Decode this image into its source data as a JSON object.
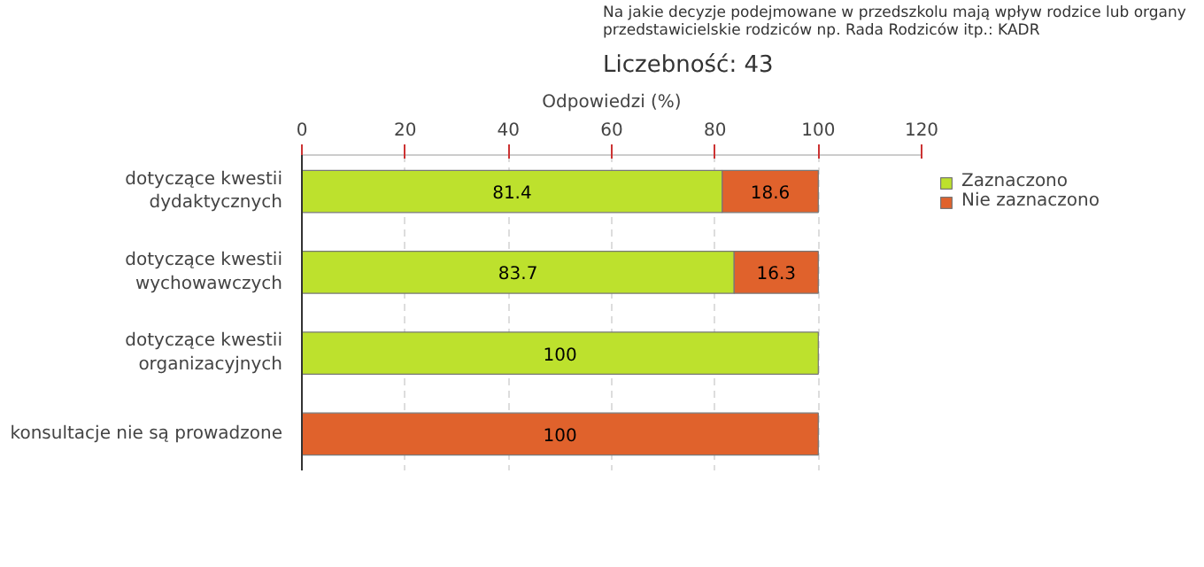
{
  "chart_data": {
    "type": "bar",
    "orientation": "horizontal",
    "stacked": true,
    "title": "Na jakie decyzje podejmowane w przedszkolu mają wpływ rodzice lub organy przedstawicielskie rodziców np. Rada Rodziców itp.: KADR",
    "subtitle": "Liczebność: 43",
    "xlabel": "Odpowiedzi (%)",
    "categories": [
      "dotyczące kwestii dydaktycznych",
      "dotyczące kwestii wychowawczych",
      "dotyczące kwestii organizacyjnych",
      "konsultacje nie są prowadzone"
    ],
    "series": [
      {
        "name": "Zaznaczono",
        "color": "#bde12d",
        "values": [
          81.4,
          83.7,
          100,
          0
        ],
        "value_labels": [
          "81.4",
          "83.7",
          "100",
          null
        ]
      },
      {
        "name": "Nie zaznaczono",
        "color": "#e0622c",
        "values": [
          18.6,
          16.3,
          0,
          100
        ],
        "value_labels": [
          "18.6",
          "16.3",
          null,
          "100"
        ]
      }
    ],
    "xlim": [
      0,
      120
    ],
    "xticks": [
      0,
      20,
      40,
      60,
      80,
      100,
      120
    ],
    "grid": "x",
    "legend": "top right"
  }
}
